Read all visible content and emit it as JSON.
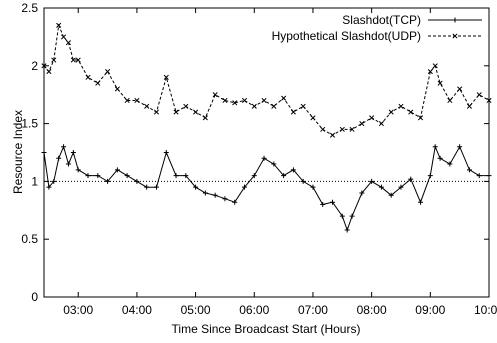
{
  "chart_data": {
    "type": "line",
    "title": "",
    "xlabel": "Time Since Broadcast Start (Hours)",
    "ylabel": "Resource Index",
    "xlim": [
      "02:25",
      "10:00"
    ],
    "ylim": [
      0,
      2.5
    ],
    "x_ticks": [
      "03:00",
      "04:00",
      "05:00",
      "06:00",
      "07:00",
      "08:00",
      "09:00",
      "10:00"
    ],
    "y_ticks": [
      "0",
      "0.5",
      "1",
      "1.5",
      "2",
      "2.5"
    ],
    "grid": false,
    "legend_position": "top-right",
    "reference_line": {
      "y": 1,
      "style": "dotted"
    },
    "series": [
      {
        "name": "Slashdot(TCP)",
        "marker": "plus",
        "line": "solid",
        "points": [
          [
            "02:25",
            1.25
          ],
          [
            "02:30",
            0.95
          ],
          [
            "02:35",
            1.0
          ],
          [
            "02:40",
            1.2
          ],
          [
            "02:45",
            1.3
          ],
          [
            "02:50",
            1.15
          ],
          [
            "02:55",
            1.25
          ],
          [
            "03:00",
            1.1
          ],
          [
            "03:10",
            1.05
          ],
          [
            "03:20",
            1.05
          ],
          [
            "03:30",
            1.0
          ],
          [
            "03:40",
            1.1
          ],
          [
            "03:50",
            1.05
          ],
          [
            "04:00",
            1.0
          ],
          [
            "04:10",
            0.95
          ],
          [
            "04:20",
            0.95
          ],
          [
            "04:30",
            1.25
          ],
          [
            "04:40",
            1.05
          ],
          [
            "04:50",
            1.05
          ],
          [
            "05:00",
            0.95
          ],
          [
            "05:10",
            0.9
          ],
          [
            "05:20",
            0.88
          ],
          [
            "05:30",
            0.85
          ],
          [
            "05:40",
            0.82
          ],
          [
            "05:50",
            0.95
          ],
          [
            "06:00",
            1.05
          ],
          [
            "06:10",
            1.2
          ],
          [
            "06:20",
            1.15
          ],
          [
            "06:30",
            1.05
          ],
          [
            "06:40",
            1.1
          ],
          [
            "06:50",
            1.0
          ],
          [
            "07:00",
            0.95
          ],
          [
            "07:10",
            0.8
          ],
          [
            "07:20",
            0.82
          ],
          [
            "07:30",
            0.7
          ],
          [
            "07:35",
            0.58
          ],
          [
            "07:40",
            0.7
          ],
          [
            "07:50",
            0.9
          ],
          [
            "08:00",
            1.0
          ],
          [
            "08:10",
            0.95
          ],
          [
            "08:20",
            0.88
          ],
          [
            "08:30",
            0.95
          ],
          [
            "08:40",
            1.02
          ],
          [
            "08:50",
            0.82
          ],
          [
            "09:00",
            1.05
          ],
          [
            "09:05",
            1.3
          ],
          [
            "09:10",
            1.2
          ],
          [
            "09:20",
            1.15
          ],
          [
            "09:30",
            1.3
          ],
          [
            "09:40",
            1.1
          ],
          [
            "09:50",
            1.05
          ],
          [
            "10:00",
            1.05
          ]
        ]
      },
      {
        "name": "Hypothetical Slashdot(UDP)",
        "marker": "cross",
        "line": "dashed",
        "points": [
          [
            "02:25",
            2.0
          ],
          [
            "02:30",
            1.95
          ],
          [
            "02:35",
            2.05
          ],
          [
            "02:40",
            2.35
          ],
          [
            "02:45",
            2.25
          ],
          [
            "02:50",
            2.2
          ],
          [
            "02:55",
            2.05
          ],
          [
            "03:00",
            2.05
          ],
          [
            "03:10",
            1.9
          ],
          [
            "03:20",
            1.85
          ],
          [
            "03:30",
            1.95
          ],
          [
            "03:40",
            1.8
          ],
          [
            "03:50",
            1.7
          ],
          [
            "04:00",
            1.7
          ],
          [
            "04:10",
            1.65
          ],
          [
            "04:20",
            1.6
          ],
          [
            "04:30",
            1.9
          ],
          [
            "04:40",
            1.6
          ],
          [
            "04:50",
            1.65
          ],
          [
            "05:00",
            1.6
          ],
          [
            "05:10",
            1.55
          ],
          [
            "05:20",
            1.75
          ],
          [
            "05:30",
            1.7
          ],
          [
            "05:40",
            1.68
          ],
          [
            "05:50",
            1.7
          ],
          [
            "06:00",
            1.65
          ],
          [
            "06:10",
            1.7
          ],
          [
            "06:20",
            1.65
          ],
          [
            "06:30",
            1.72
          ],
          [
            "06:40",
            1.6
          ],
          [
            "06:50",
            1.65
          ],
          [
            "07:00",
            1.55
          ],
          [
            "07:10",
            1.45
          ],
          [
            "07:20",
            1.4
          ],
          [
            "07:30",
            1.45
          ],
          [
            "07:40",
            1.45
          ],
          [
            "07:50",
            1.5
          ],
          [
            "08:00",
            1.55
          ],
          [
            "08:10",
            1.5
          ],
          [
            "08:20",
            1.6
          ],
          [
            "08:30",
            1.65
          ],
          [
            "08:40",
            1.6
          ],
          [
            "08:50",
            1.55
          ],
          [
            "09:00",
            1.95
          ],
          [
            "09:05",
            2.0
          ],
          [
            "09:10",
            1.85
          ],
          [
            "09:20",
            1.7
          ],
          [
            "09:30",
            1.8
          ],
          [
            "09:40",
            1.65
          ],
          [
            "09:50",
            1.75
          ],
          [
            "10:00",
            1.7
          ]
        ]
      }
    ]
  }
}
